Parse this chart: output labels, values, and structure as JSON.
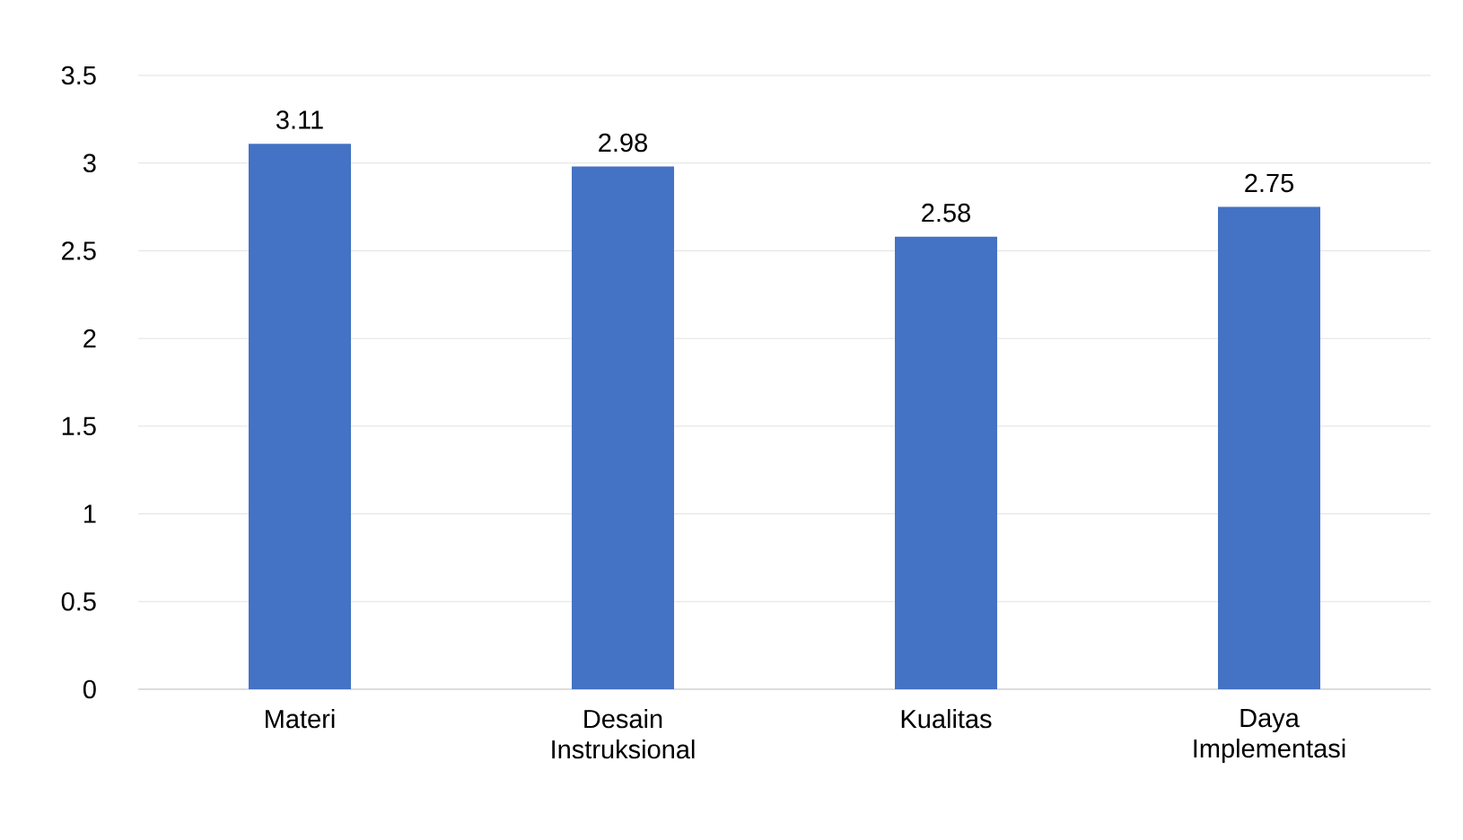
{
  "chart_data": {
    "type": "bar",
    "categories": [
      "Materi",
      "Desain Instruksional",
      "Kualitas",
      "Daya Implementasi"
    ],
    "values": [
      3.11,
      2.98,
      2.58,
      2.75
    ],
    "color": "#4472c4",
    "ylim": [
      0,
      3.5
    ],
    "yticks": [
      0,
      0.5,
      1,
      1.5,
      2,
      2.5,
      3,
      3.5
    ],
    "grid": "y",
    "data_labels": true
  }
}
